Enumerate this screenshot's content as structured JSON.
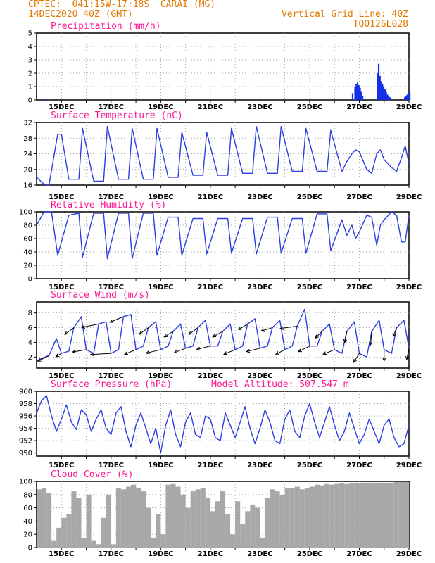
{
  "header": {
    "station": "CPTEC:  041:15W-17:18S  CARAI (MG)",
    "datetime": "14DEC2020 40Z (GMT)",
    "grid_note": "Vertical Grid Line: 40Z",
    "run_id": "TQ0126L028"
  },
  "x_axis": {
    "day_start": 14.0,
    "day_end": 29.0,
    "labels": [
      "15DEC",
      "17DEC",
      "19DEC",
      "21DEC",
      "23DEC",
      "25DEC",
      "27DEC",
      "29DEC"
    ],
    "label_days": [
      15,
      17,
      19,
      21,
      23,
      25,
      27,
      29
    ]
  },
  "altitude_text": "Model Altitude: 507.547 m",
  "colors": {
    "line": "#2b3fe0",
    "precip": "#1530e6",
    "cloud": "#a8a8a8",
    "title": "#ff1493",
    "header": "#e07800"
  },
  "chart_data": [
    {
      "id": "precip",
      "type": "bar",
      "title": "Precipitation (mm/h)",
      "ylim": [
        0,
        5
      ],
      "yticks": [
        "0",
        "1",
        "2",
        "3",
        "4",
        "5"
      ],
      "x": [
        14.3,
        14.5,
        18.5,
        26.7,
        26.8,
        26.85,
        26.9,
        26.95,
        27.0,
        27.05,
        27.1,
        27.7,
        27.75,
        27.8,
        27.85,
        27.9,
        27.95,
        28.0,
        28.05,
        28.1,
        28.15,
        28.2,
        28.8,
        28.85,
        28.9,
        28.95,
        29.0
      ],
      "values": [
        0.05,
        0.02,
        0.03,
        0.5,
        1.0,
        1.2,
        1.3,
        1.1,
        0.9,
        0.6,
        0.3,
        2.0,
        2.7,
        1.8,
        1.4,
        1.2,
        1.0,
        0.8,
        0.6,
        0.4,
        0.3,
        0.2,
        0.2,
        0.3,
        0.4,
        0.5,
        0.6
      ]
    },
    {
      "id": "temp",
      "type": "line",
      "title": "Surface Temperature (nC)",
      "ylim": [
        16,
        32
      ],
      "yticks": [
        "16",
        "20",
        "24",
        "28",
        "32"
      ],
      "x": [
        14.0,
        14.3,
        14.5,
        14.85,
        15.0,
        15.3,
        15.7,
        15.85,
        16.3,
        16.7,
        16.85,
        17.3,
        17.7,
        17.85,
        18.3,
        18.7,
        18.85,
        19.3,
        19.7,
        19.85,
        20.3,
        20.7,
        20.85,
        21.3,
        21.7,
        21.85,
        22.3,
        22.7,
        22.85,
        23.3,
        23.7,
        23.85,
        24.3,
        24.7,
        24.85,
        25.3,
        25.7,
        25.85,
        26.3,
        26.5,
        26.7,
        26.85,
        27.0,
        27.3,
        27.5,
        27.7,
        27.85,
        28.0,
        28.3,
        28.5,
        28.7,
        28.85,
        29.0
      ],
      "values": [
        18,
        16.2,
        16.0,
        29,
        29,
        17.5,
        17.5,
        30.5,
        17,
        17,
        31,
        17.5,
        17.5,
        30.5,
        17.5,
        17.5,
        30.5,
        18,
        18,
        29.5,
        18.5,
        18.5,
        29.5,
        18.5,
        18.5,
        30.5,
        19,
        19,
        31,
        19,
        19,
        31,
        19.5,
        19.5,
        30.5,
        19.5,
        19.5,
        30,
        19.5,
        22,
        24,
        25,
        24.5,
        20,
        19,
        24,
        25,
        22.5,
        20.5,
        19.5,
        23,
        26,
        21.5
      ]
    },
    {
      "id": "rh",
      "type": "line",
      "title": "Relative Humidity (%)",
      "ylim": [
        0,
        100
      ],
      "yticks": [
        "0",
        "20",
        "40",
        "60",
        "80",
        "100"
      ],
      "x": [
        14.0,
        14.3,
        14.6,
        14.85,
        15.3,
        15.7,
        15.85,
        16.3,
        16.7,
        16.85,
        17.3,
        17.7,
        17.85,
        18.3,
        18.7,
        18.85,
        19.3,
        19.7,
        19.85,
        20.3,
        20.7,
        20.85,
        21.3,
        21.7,
        21.85,
        22.3,
        22.7,
        22.85,
        23.3,
        23.7,
        23.85,
        24.3,
        24.7,
        24.85,
        25.3,
        25.7,
        25.85,
        26.3,
        26.5,
        26.7,
        26.85,
        27.0,
        27.3,
        27.5,
        27.7,
        27.85,
        28.0,
        28.3,
        28.5,
        28.7,
        28.85,
        29.0
      ],
      "values": [
        80,
        100,
        100,
        35,
        95,
        98,
        32,
        98,
        98,
        30,
        98,
        98,
        30,
        98,
        98,
        35,
        92,
        92,
        35,
        90,
        90,
        37,
        90,
        90,
        38,
        90,
        90,
        37,
        92,
        92,
        38,
        90,
        90,
        38,
        97,
        97,
        42,
        88,
        65,
        80,
        60,
        70,
        95,
        92,
        50,
        80,
        88,
        100,
        95,
        55,
        55,
        95
      ]
    },
    {
      "id": "wind",
      "type": "line",
      "title": "Surface Wind (m/s)",
      "ylim": [
        0.5,
        9.5
      ],
      "yticks": [
        "2",
        "4",
        "6",
        "8"
      ],
      "ytick_values": [
        2,
        4,
        6,
        8
      ],
      "x": [
        14.0,
        14.2,
        14.5,
        14.8,
        15.0,
        15.3,
        15.5,
        15.8,
        16.0,
        16.3,
        16.5,
        16.8,
        17.0,
        17.3,
        17.5,
        17.8,
        18.0,
        18.3,
        18.5,
        18.8,
        19.0,
        19.3,
        19.5,
        19.8,
        20.0,
        20.3,
        20.5,
        20.8,
        21.0,
        21.3,
        21.5,
        21.8,
        22.0,
        22.3,
        22.5,
        22.8,
        23.0,
        23.3,
        23.5,
        23.8,
        24.0,
        24.3,
        24.5,
        24.8,
        25.0,
        25.3,
        25.5,
        25.8,
        26.0,
        26.3,
        26.5,
        26.8,
        27.0,
        27.3,
        27.5,
        27.8,
        28.0,
        28.3,
        28.5,
        28.8,
        29.0
      ],
      "values": [
        1.5,
        1.8,
        2.2,
        4.5,
        2.5,
        2.8,
        6.0,
        7.5,
        3.0,
        2.5,
        6.5,
        6.8,
        2.5,
        3.0,
        7.5,
        7.8,
        3.0,
        3.5,
        6.0,
        6.8,
        3.0,
        3.5,
        5.5,
        6.5,
        3.2,
        3.5,
        6.0,
        7.0,
        3.5,
        3.5,
        5.5,
        6.5,
        3.0,
        3.5,
        6.5,
        7.2,
        3.2,
        3.5,
        6.0,
        7.0,
        3.0,
        3.5,
        6.2,
        8.5,
        3.5,
        3.5,
        5.5,
        6.5,
        3.0,
        2.5,
        5.5,
        6.8,
        2.5,
        2.0,
        5.5,
        7.0,
        3.0,
        2.5,
        6.0,
        7.0,
        3.2
      ],
      "arrows": {
        "x": [
          14.5,
          15.0,
          15.5,
          16.0,
          16.5,
          17.0,
          17.5,
          18.0,
          18.5,
          19.0,
          19.5,
          20.0,
          20.5,
          21.0,
          21.5,
          22.0,
          22.5,
          23.0,
          23.5,
          24.0,
          24.5,
          25.0,
          25.5,
          26.0,
          26.5,
          27.0,
          27.5,
          28.0,
          28.5,
          29.0
        ],
        "u": [
          -1.0,
          -0.5,
          -0.8,
          -1.2,
          -1.5,
          -1.8,
          -1.2,
          -1.0,
          -0.8,
          -1.3,
          -0.8,
          -1.0,
          -0.8,
          -1.2,
          -0.9,
          -1.0,
          -0.8,
          -1.2,
          -1.0,
          -0.8,
          -1.5,
          -1.0,
          -0.6,
          -1.0,
          -0.2,
          -0.5,
          -0.1,
          0.0,
          -0.3,
          -0.2
        ],
        "v": [
          -0.5,
          -0.3,
          -0.6,
          -0.2,
          -0.3,
          -0.1,
          -0.5,
          -0.4,
          -0.6,
          -0.3,
          -0.5,
          -0.4,
          -0.6,
          -0.3,
          -0.5,
          -0.4,
          -0.5,
          -0.3,
          -0.3,
          -0.4,
          -0.2,
          -0.5,
          -0.6,
          -0.4,
          -1.0,
          -0.8,
          -1.2,
          -1.0,
          -0.8,
          -1.0
        ]
      }
    },
    {
      "id": "pres",
      "type": "line",
      "title": "Surface Pressure (hPa)",
      "ylim": [
        949.5,
        960
      ],
      "yticks": [
        "950",
        "952",
        "954",
        "956",
        "958",
        "960"
      ],
      "ytick_values": [
        950,
        952,
        954,
        956,
        958,
        960
      ],
      "x": [
        14.0,
        14.2,
        14.4,
        14.6,
        14.8,
        15.0,
        15.2,
        15.4,
        15.6,
        15.8,
        16.0,
        16.2,
        16.4,
        16.6,
        16.8,
        17.0,
        17.2,
        17.4,
        17.6,
        17.8,
        18.0,
        18.2,
        18.4,
        18.6,
        18.8,
        19.0,
        19.2,
        19.4,
        19.6,
        19.8,
        20.0,
        20.2,
        20.4,
        20.6,
        20.8,
        21.0,
        21.2,
        21.4,
        21.6,
        21.8,
        22.0,
        22.2,
        22.4,
        22.6,
        22.8,
        23.0,
        23.2,
        23.4,
        23.6,
        23.8,
        24.0,
        24.2,
        24.4,
        24.6,
        24.8,
        25.0,
        25.2,
        25.4,
        25.6,
        25.8,
        26.0,
        26.2,
        26.4,
        26.6,
        26.8,
        27.0,
        27.2,
        27.4,
        27.6,
        27.8,
        28.0,
        28.2,
        28.4,
        28.6,
        28.8,
        29.0
      ],
      "values": [
        956.5,
        958.5,
        959.3,
        956.0,
        953.5,
        955.5,
        957.8,
        955.0,
        953.8,
        957.0,
        956.2,
        953.5,
        955.5,
        957.0,
        954.0,
        953.0,
        956.5,
        957.5,
        953.5,
        951.0,
        954.5,
        956.5,
        954.0,
        951.5,
        954.0,
        950.0,
        954.5,
        957.0,
        953.0,
        951.0,
        955.0,
        956.5,
        953.0,
        952.5,
        956.0,
        955.5,
        952.5,
        952.0,
        956.5,
        954.5,
        952.5,
        955.0,
        957.5,
        954.0,
        951.5,
        954.0,
        957.0,
        955.0,
        952.0,
        951.5,
        955.5,
        957.0,
        953.5,
        952.5,
        956.0,
        958.0,
        955.0,
        952.5,
        955.0,
        957.5,
        954.5,
        952.0,
        953.5,
        956.5,
        954.0,
        951.5,
        953.0,
        955.5,
        953.5,
        951.5,
        954.5,
        955.5,
        952.5,
        951.0,
        951.5,
        954.5
      ]
    },
    {
      "id": "cloud",
      "type": "bar",
      "title": "Cloud Cover (%)",
      "ylim": [
        0,
        100
      ],
      "yticks": [
        "0",
        "20",
        "40",
        "60",
        "80",
        "100"
      ],
      "x": [
        14.0,
        14.2,
        14.4,
        14.6,
        14.8,
        15.0,
        15.2,
        15.4,
        15.6,
        15.8,
        16.0,
        16.2,
        16.4,
        16.6,
        16.8,
        17.0,
        17.2,
        17.4,
        17.6,
        17.8,
        18.0,
        18.2,
        18.4,
        18.6,
        18.8,
        19.0,
        19.2,
        19.4,
        19.6,
        19.8,
        20.0,
        20.2,
        20.4,
        20.6,
        20.8,
        21.0,
        21.2,
        21.4,
        21.6,
        21.8,
        22.0,
        22.2,
        22.4,
        22.6,
        22.8,
        23.0,
        23.2,
        23.4,
        23.6,
        23.8,
        24.0,
        24.2,
        24.4,
        24.6,
        24.8,
        25.0,
        25.2,
        25.4,
        25.6,
        25.8,
        26.0,
        26.2,
        26.4,
        26.6,
        26.8,
        27.0,
        27.2,
        27.4,
        27.6,
        27.8,
        28.0,
        28.2,
        28.4,
        28.6,
        28.8
      ],
      "values": [
        88,
        90,
        82,
        10,
        30,
        45,
        50,
        85,
        75,
        15,
        80,
        10,
        5,
        45,
        80,
        5,
        90,
        88,
        92,
        95,
        90,
        85,
        60,
        15,
        50,
        20,
        95,
        96,
        92,
        80,
        60,
        85,
        88,
        90,
        75,
        55,
        70,
        85,
        50,
        20,
        70,
        35,
        55,
        65,
        60,
        15,
        75,
        88,
        85,
        80,
        90,
        90,
        92,
        88,
        90,
        92,
        95,
        94,
        96,
        95,
        96,
        97,
        96,
        97,
        97,
        98,
        98,
        98,
        98,
        98,
        98,
        98,
        99,
        99,
        99
      ]
    }
  ]
}
